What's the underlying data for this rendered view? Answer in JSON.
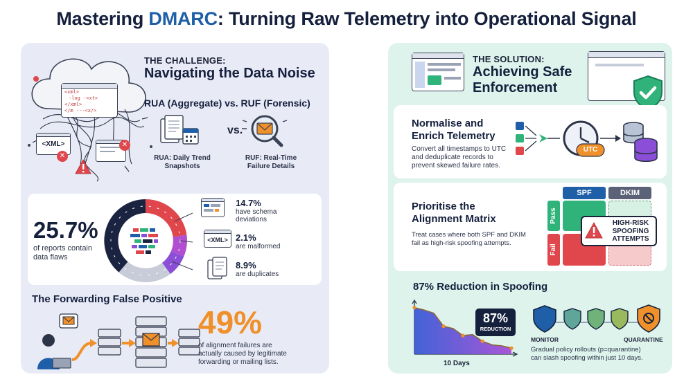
{
  "header": {
    "title_pre": "Mastering ",
    "title_accent": "DMARC",
    "title_post": ": Turning Raw Telemetry into Operational Signal"
  },
  "challenge": {
    "kicker": "THE CHALLENGE:",
    "heading": "Navigating the Data Noise",
    "cloud_code": [
      "<xml>",
      "-log -<xt>",
      "</xml>",
      "</m ---<x/>"
    ],
    "xml_tag": "<XML>",
    "rua_ruf_heading": "RUA (Aggregate) vs. RUF (Forensic)",
    "vs_label": "vs.",
    "rua_caption": [
      "RUA: Daily Trend",
      "Snapshots"
    ],
    "ruf_caption": [
      "RUF: Real-Time",
      "Failure Details"
    ]
  },
  "flaws": {
    "headline_value": "25.7%",
    "headline_label": [
      "of reports contain",
      "data flaws"
    ],
    "xml_tag": "<XML>",
    "items": [
      {
        "value": "14.7%",
        "label": [
          "have schema",
          "deviations"
        ]
      },
      {
        "value": "2.1%",
        "label": [
          "are malformed"
        ]
      },
      {
        "value": "8.9%",
        "label": [
          "are duplicates"
        ]
      }
    ]
  },
  "forwarding": {
    "heading": "The Forwarding False Positive",
    "stat": "49%",
    "stat_label": [
      "of alignment failures are",
      "actually caused by legitimate",
      "forwarding or mailing lists."
    ]
  },
  "solution": {
    "kicker": "THE SOLUTION:",
    "heading": [
      "Achieving Safe",
      "Enforcement"
    ]
  },
  "normalise": {
    "heading": [
      "Normalise and",
      "Enrich Telemetry"
    ],
    "body": [
      "Convert all timestamps to UTC",
      "and deduplicate records to",
      "prevent skewed failure rates."
    ],
    "clock_label": "UTC"
  },
  "matrix": {
    "heading": [
      "Prioritise the",
      "Alignment Matrix"
    ],
    "body": [
      "Treat cases where both SPF and DKIM",
      "fail as high-risk spoofing attempts."
    ],
    "col_headers": [
      "SPF",
      "DKIM"
    ],
    "row_headers": [
      "Pass",
      "Fail"
    ],
    "alert_text": [
      "HIGH-RISK",
      "SPOOFING",
      "ATTEMPTS"
    ]
  },
  "reduction": {
    "heading": "87% Reduction in Spoofing",
    "badge_value": "87%",
    "badge_label": "REDUCTION",
    "x_label": "10 Days",
    "policy_start": "MONITOR",
    "policy_end": "QUARANTINE",
    "body": [
      "Gradual policy rollouts (p=quarantine)",
      "can slash spoofing within just 10 days."
    ]
  },
  "chart_data": {
    "type": "area",
    "title": "87% Reduction in Spoofing",
    "xlabel": "10 Days",
    "ylabel": "",
    "x": [
      0,
      1,
      2,
      3,
      4,
      5,
      6,
      7,
      8,
      9,
      10
    ],
    "values": [
      100,
      95,
      88,
      60,
      55,
      40,
      42,
      28,
      20,
      18,
      13
    ],
    "ylim": [
      0,
      110
    ],
    "grid": false
  },
  "colors": {
    "navy": "#15203d",
    "accent_blue": "#1e5fa8",
    "alert_red": "#e0474c",
    "warn_orange": "#f0902a",
    "success_green": "#2fb37a",
    "chart_purple": "#8a4fd6"
  }
}
